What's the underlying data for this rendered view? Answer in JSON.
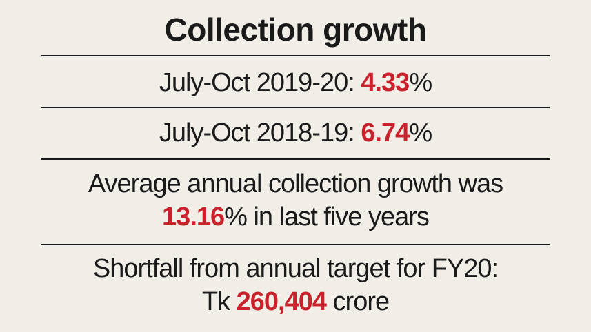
{
  "title": "Collection growth",
  "accent_color": "#c8232c",
  "rows": [
    {
      "prefix": "July-Oct 2019-20: ",
      "value": "4.33",
      "suffix": "%"
    },
    {
      "prefix": "July-Oct 2018-19: ",
      "value": "6.74",
      "suffix": "%"
    },
    {
      "line1": "Average annual collection growth was",
      "value": "13.16",
      "suffix": "% in last five years"
    },
    {
      "line1": "Shortfall from annual target for FY20:",
      "prefix": "Tk ",
      "value": "260,404",
      "suffix": " crore"
    }
  ]
}
